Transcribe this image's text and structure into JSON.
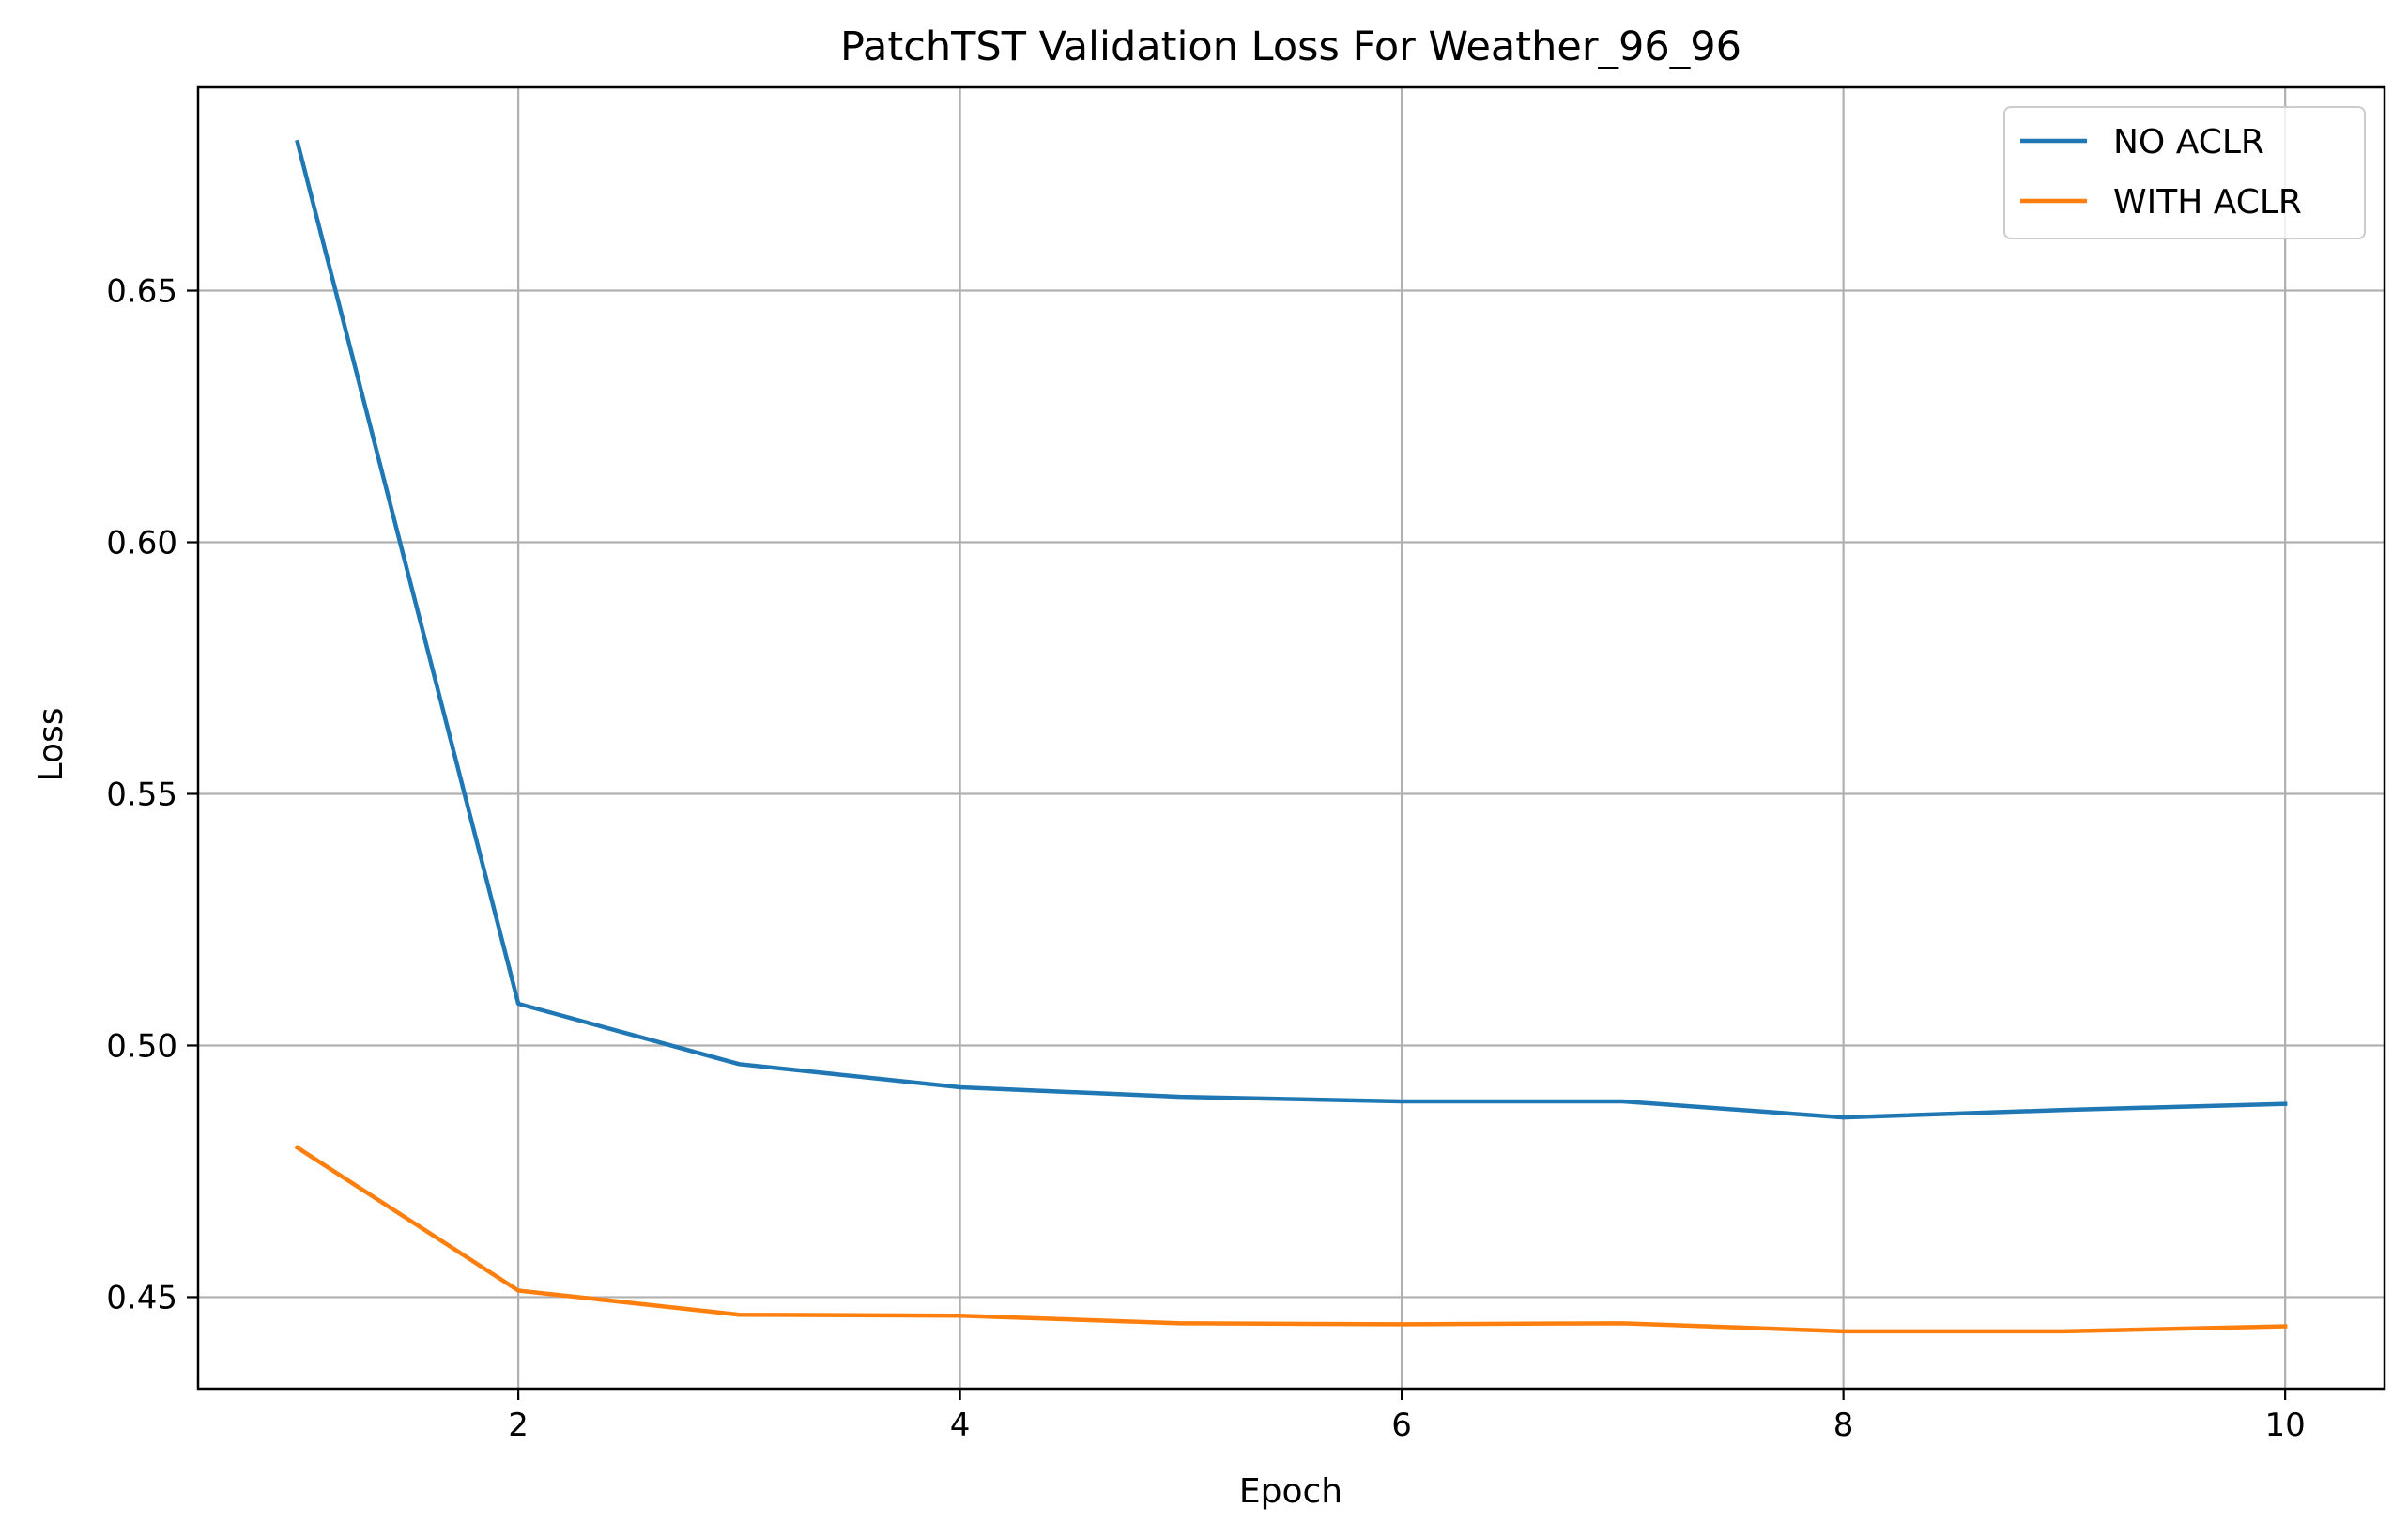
{
  "chart_data": {
    "type": "line",
    "title": "PatchTST Validation Loss For Weather_96_96",
    "xlabel": "Epoch",
    "ylabel": "Loss",
    "x": [
      1,
      2,
      3,
      4,
      5,
      6,
      7,
      8,
      9,
      10
    ],
    "xlim": [
      0.55,
      10.45
    ],
    "ylim": [
      0.4318,
      0.6904
    ],
    "xticks": [
      2,
      4,
      6,
      8,
      10
    ],
    "xtick_labels": [
      "2",
      "4",
      "6",
      "8",
      "10"
    ],
    "yticks": [
      0.45,
      0.5,
      0.55,
      0.6,
      0.65
    ],
    "ytick_labels": [
      "0.45",
      "0.50",
      "0.55",
      "0.60",
      "0.65"
    ],
    "grid": true,
    "legend_position": "top-right",
    "series": [
      {
        "name": "NO ACLR",
        "color": "#1f77b4",
        "values": [
          0.6795,
          0.5083,
          0.4963,
          0.4917,
          0.4898,
          0.4889,
          0.4889,
          0.4857,
          0.4872,
          0.4884
        ]
      },
      {
        "name": "WITH ACLR",
        "color": "#ff7f0e",
        "values": [
          0.4797,
          0.4513,
          0.4465,
          0.4463,
          0.4448,
          0.4446,
          0.4448,
          0.4432,
          0.4432,
          0.4442
        ]
      }
    ]
  }
}
